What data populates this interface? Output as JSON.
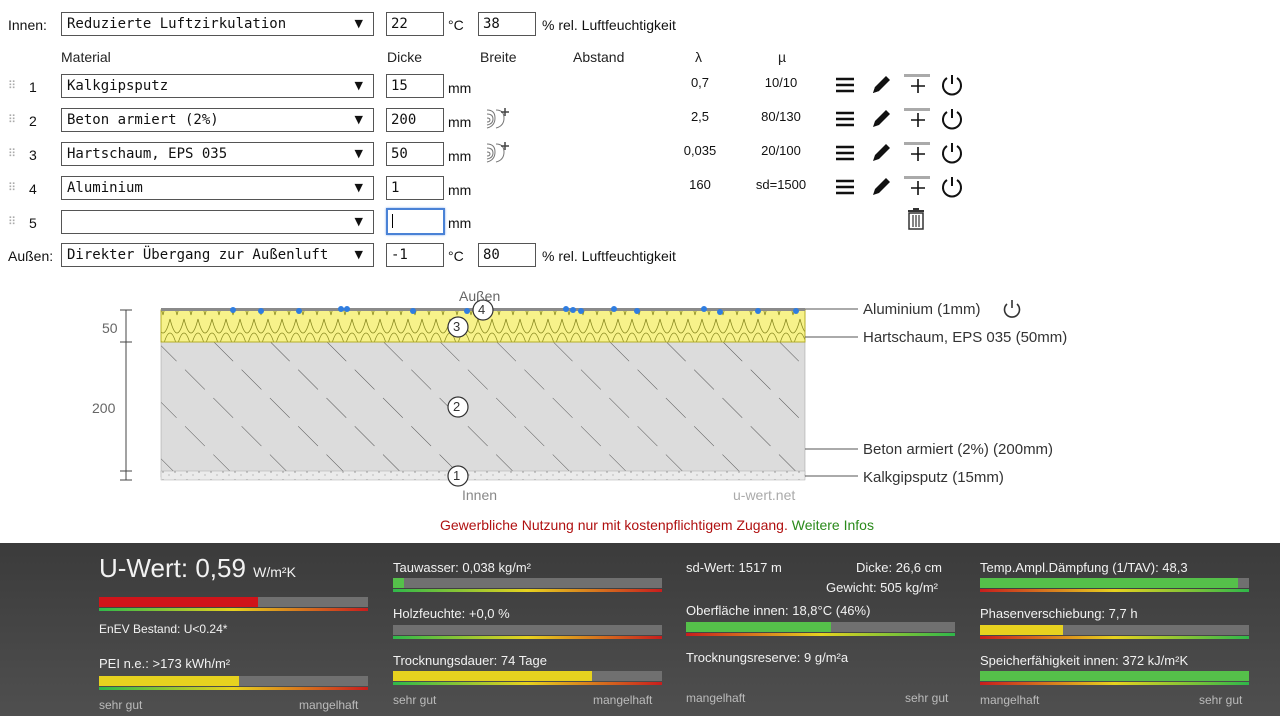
{
  "inside": {
    "label": "Innen:",
    "climate": "Reduzierte Luftzirkulation",
    "temp": "22",
    "temp_unit": "°C",
    "humidity": "38",
    "humidity_unit": "% rel. Luftfeuchtigkeit"
  },
  "columns": {
    "material": "Material",
    "dicke": "Dicke",
    "breite": "Breite",
    "abstand": "Abstand",
    "lambda": "λ",
    "mu": "µ"
  },
  "layers": [
    {
      "num": "1",
      "material": "Kalkgipsputz",
      "thickness": "15",
      "unit": "mm",
      "lambda": "0,7",
      "mu": "10/10"
    },
    {
      "num": "2",
      "material": "Beton armiert (2%)",
      "thickness": "200",
      "unit": "mm",
      "lambda": "2,5",
      "mu": "80/130"
    },
    {
      "num": "3",
      "material": "Hartschaum, EPS 035",
      "thickness": "50",
      "unit": "mm",
      "lambda": "0,035",
      "mu": "20/100"
    },
    {
      "num": "4",
      "material": "Aluminium",
      "thickness": "1",
      "unit": "mm",
      "lambda": "160",
      "mu": "sd=1500"
    },
    {
      "num": "5",
      "material": "",
      "thickness": "",
      "unit": "mm",
      "lambda": "",
      "mu": ""
    }
  ],
  "outside": {
    "label": "Außen:",
    "climate": "Direkter Übergang zur Außenluft",
    "temp": "-1",
    "temp_unit": "°C",
    "humidity": "80",
    "humidity_unit": "% rel. Luftfeuchtigkeit"
  },
  "diagram": {
    "top_label": "Außen",
    "bottom_label": "Innen",
    "watermark": "u-wert.net",
    "dim_50": "50",
    "dim_200": "200",
    "legend": [
      "Aluminium (1mm)",
      "Hartschaum, EPS 035 (50mm)",
      "Beton armiert (2%) (200mm)",
      "Kalkgipsputz (15mm)"
    ],
    "markers": [
      "4",
      "3",
      "2",
      "1"
    ]
  },
  "notice": {
    "text": "Gewerbliche Nutzung nur mit kostenpflichtigem Zugang.",
    "link": "Weitere Infos",
    "text_color": "#b01010",
    "link_color": "#2a8a1a"
  },
  "results": {
    "uwert_label": "U-Wert:",
    "uwert_value": "0,59",
    "uwert_unit": "W/m²K",
    "enev": "EnEV Bestand: U<0.24*",
    "pei": "PEI n.e.: >173 kWh/m²",
    "col1_left": "sehr gut",
    "col1_right": "mangelhaft",
    "tauwasser": "Tauwasser: 0,038 kg/m²",
    "holzfeuchte": "Holzfeuchte: +0,0 %",
    "trocknungsdauer": "Trocknungsdauer: 74 Tage",
    "col2_left": "sehr gut",
    "col2_right": "mangelhaft",
    "sd_wert": "sd-Wert: 1517 m",
    "dicke": "Dicke: 26,6 cm",
    "gewicht": "Gewicht: 505 kg/m²",
    "oberflaeche": "Oberfläche innen: 18,8°C (46%)",
    "trocknungsreserve": "Trocknungsreserve: 9 g/m²a",
    "col3_left": "mangelhaft",
    "col3_right": "sehr gut",
    "tav": "Temp.Ampl.Dämpfung (1/TAV): 48,3",
    "phase": "Phasenverschiebung: 7,7 h",
    "speicher": "Speicherfähigkeit innen: 372 kJ/m²K",
    "col4_left": "mangelhaft",
    "col4_right": "sehr gut",
    "levels": {
      "uwert": 0.59,
      "pei": 0.52,
      "tauwasser": 0.04,
      "holzfeuchte": 0.0,
      "trocknungsdauer": 0.74,
      "oberflaeche": 0.54,
      "tav": 0.96,
      "phase": 0.31,
      "speicher": 1.0
    },
    "colors": {
      "red": "#d0141a",
      "yellow": "#e7d21f",
      "green": "#55c04a"
    }
  }
}
